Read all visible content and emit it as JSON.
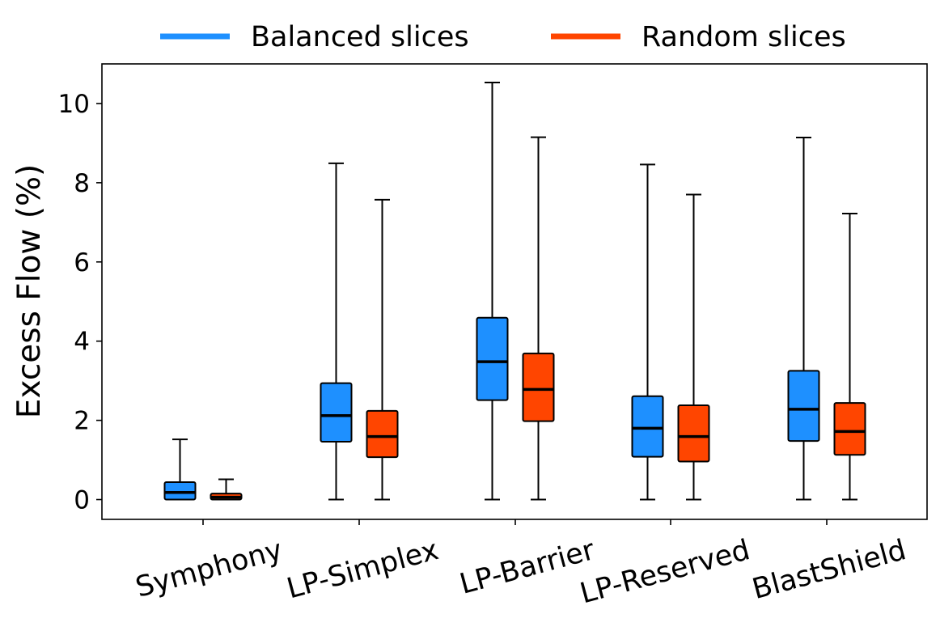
{
  "chart_data": {
    "type": "box",
    "title": "",
    "xlabel": "",
    "ylabel": "Excess Flow (%)",
    "ylim": [
      -0.5,
      11
    ],
    "yticks": [
      0,
      2,
      4,
      6,
      8,
      10
    ],
    "yticklabels": [
      "0",
      "2",
      "4",
      "6",
      "8",
      "10"
    ],
    "categories": [
      "Symphony",
      "LP-Simplex",
      "LP-Barrier",
      "LP-Reserved",
      "BlastShield"
    ],
    "legend_position": "top-center",
    "grid": false,
    "series": [
      {
        "name": "Balanced slices",
        "color": "#1e90ff",
        "boxes": [
          {
            "min": 0.0,
            "q1": 0.0,
            "median": 0.18,
            "q3": 0.44,
            "max": 1.52
          },
          {
            "min": 0.0,
            "q1": 1.46,
            "median": 2.12,
            "q3": 2.94,
            "max": 8.49
          },
          {
            "min": 0.0,
            "q1": 2.51,
            "median": 3.48,
            "q3": 4.59,
            "max": 10.53
          },
          {
            "min": 0.0,
            "q1": 1.08,
            "median": 1.8,
            "q3": 2.61,
            "max": 8.46
          },
          {
            "min": 0.0,
            "q1": 1.48,
            "median": 2.28,
            "q3": 3.25,
            "max": 9.14
          }
        ]
      },
      {
        "name": "Random slices",
        "color": "#ff4500",
        "boxes": [
          {
            "min": 0.0,
            "q1": 0.0,
            "median": 0.06,
            "q3": 0.15,
            "max": 0.51
          },
          {
            "min": 0.0,
            "q1": 1.07,
            "median": 1.59,
            "q3": 2.24,
            "max": 7.57
          },
          {
            "min": 0.0,
            "q1": 1.98,
            "median": 2.78,
            "q3": 3.69,
            "max": 9.15
          },
          {
            "min": 0.0,
            "q1": 0.96,
            "median": 1.59,
            "q3": 2.38,
            "max": 7.7
          },
          {
            "min": 0.0,
            "q1": 1.13,
            "median": 1.72,
            "q3": 2.44,
            "max": 7.22
          }
        ]
      }
    ]
  }
}
